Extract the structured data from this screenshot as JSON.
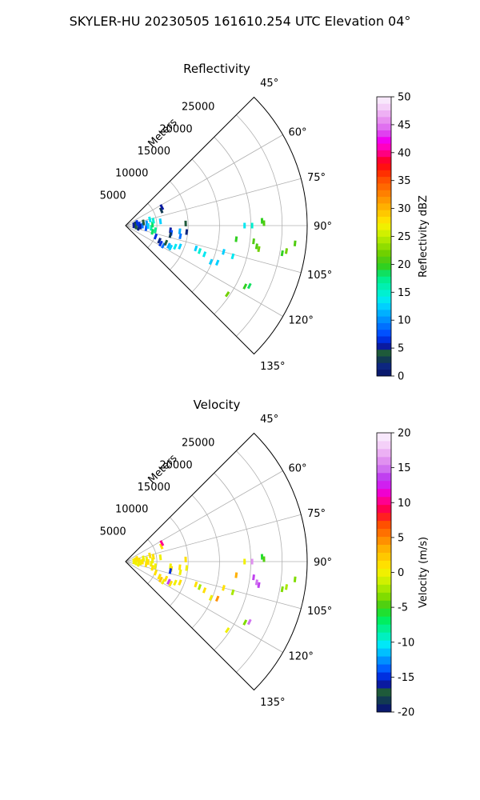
{
  "figure": {
    "suptitle": "SKYLER-HU  20230505  161610.254 UTC Elevation 04°"
  },
  "chart_data": [
    {
      "type": "scatter",
      "subtype": "polar-sector radar PPI",
      "title": "Reflectivity",
      "radial_label": "Meters",
      "theta_range_deg": [
        45,
        135
      ],
      "theta_ticks": [
        "45°",
        "60°",
        "75°",
        "90°",
        "105°",
        "120°",
        "135°"
      ],
      "r_max_m": 29000,
      "r_ticks": [
        "5000",
        "10000",
        "15000",
        "20000",
        "25000"
      ],
      "grid": true,
      "colorbar": {
        "label": "Reflectivity dBZ",
        "min": 0,
        "max": 50,
        "ticks": [
          "0",
          "5",
          "10",
          "15",
          "20",
          "25",
          "30",
          "35",
          "40",
          "45",
          "50"
        ],
        "levels": [
          "#0a1a6e",
          "#0d2680",
          "#123a52",
          "#1e5a3a",
          "#0a1aa0",
          "#0030e0",
          "#0050ff",
          "#0070ff",
          "#0090ff",
          "#00b0ff",
          "#00d0ff",
          "#00e8f0",
          "#00f0d0",
          "#00f0b0",
          "#00ee90",
          "#10e060",
          "#30d020",
          "#50cc10",
          "#70d000",
          "#90dd00",
          "#b0e800",
          "#d0f000",
          "#f0f000",
          "#ffe000",
          "#ffc800",
          "#ffb000",
          "#ff9800",
          "#ff8000",
          "#ff6800",
          "#ff5000",
          "#ff3000",
          "#ff1010",
          "#ff0030",
          "#ff0080",
          "#ff00c0",
          "#f000f0",
          "#e040f0",
          "#e070f0",
          "#e890f0",
          "#eeb0f4",
          "#f4d0f8",
          "#f8e8fc"
        ]
      },
      "points": [
        {
          "r": 1300,
          "theta": 88,
          "v": 5
        },
        {
          "r": 1600,
          "theta": 82,
          "v": 3
        },
        {
          "r": 1700,
          "theta": 95,
          "v": 4
        },
        {
          "r": 1900,
          "theta": 77,
          "v": 6
        },
        {
          "r": 2100,
          "theta": 100,
          "v": 2
        },
        {
          "r": 2200,
          "theta": 86,
          "v": 7
        },
        {
          "r": 2400,
          "theta": 93,
          "v": 5
        },
        {
          "r": 2700,
          "theta": 90,
          "v": 9
        },
        {
          "r": 2900,
          "theta": 80,
          "v": 4
        },
        {
          "r": 3300,
          "theta": 97,
          "v": 8
        },
        {
          "r": 3400,
          "theta": 84,
          "v": 10
        },
        {
          "r": 3600,
          "theta": 91,
          "v": 12
        },
        {
          "r": 4000,
          "theta": 76,
          "v": 14
        },
        {
          "r": 4100,
          "theta": 95,
          "v": 16
        },
        {
          "r": 4400,
          "theta": 103,
          "v": 18
        },
        {
          "r": 4800,
          "theta": 99,
          "v": 17
        },
        {
          "r": 5100,
          "theta": 110,
          "v": 7
        },
        {
          "r": 5600,
          "theta": 83,
          "v": 13
        },
        {
          "r": 4300,
          "theta": 88,
          "v": 19
        },
        {
          "r": 4500,
          "theta": 80,
          "v": 15
        },
        {
          "r": 6200,
          "theta": 67,
          "v": 3
        },
        {
          "r": 6500,
          "theta": 63,
          "v": 5
        },
        {
          "r": 5900,
          "theta": 114,
          "v": 2
        },
        {
          "r": 6300,
          "theta": 117,
          "v": 6
        },
        {
          "r": 6800,
          "theta": 118,
          "v": 9
        },
        {
          "r": 7000,
          "theta": 113,
          "v": 4
        },
        {
          "r": 7600,
          "theta": 115,
          "v": 11
        },
        {
          "r": 8000,
          "theta": 116,
          "v": 12
        },
        {
          "r": 8600,
          "theta": 113,
          "v": 14
        },
        {
          "r": 9300,
          "theta": 111,
          "v": 13
        },
        {
          "r": 7200,
          "theta": 96,
          "v": 5
        },
        {
          "r": 7400,
          "theta": 99,
          "v": 8
        },
        {
          "r": 7300,
          "theta": 102,
          "v": 3
        },
        {
          "r": 8700,
          "theta": 96,
          "v": 11
        },
        {
          "r": 8900,
          "theta": 101,
          "v": 9
        },
        {
          "r": 9600,
          "theta": 88,
          "v": 4
        },
        {
          "r": 9800,
          "theta": 96,
          "v": 2
        },
        {
          "r": 11800,
          "theta": 108,
          "v": 13
        },
        {
          "r": 12500,
          "theta": 109,
          "v": 15
        },
        {
          "r": 13400,
          "theta": 110,
          "v": 14
        },
        {
          "r": 14800,
          "theta": 113,
          "v": 13
        },
        {
          "r": 15800,
          "theta": 112,
          "v": 12
        },
        {
          "r": 16200,
          "theta": 105,
          "v": 13
        },
        {
          "r": 17800,
          "theta": 106,
          "v": 14
        },
        {
          "r": 21400,
          "theta": 117,
          "v": 20
        },
        {
          "r": 22000,
          "theta": 116,
          "v": 19
        },
        {
          "r": 19600,
          "theta": 124,
          "v": 22
        },
        {
          "r": 17800,
          "theta": 97,
          "v": 20
        },
        {
          "r": 20600,
          "theta": 97,
          "v": 21
        },
        {
          "r": 21200,
          "theta": 99,
          "v": 21
        },
        {
          "r": 21600,
          "theta": 100,
          "v": 22
        },
        {
          "r": 19000,
          "theta": 90,
          "v": 14
        },
        {
          "r": 20200,
          "theta": 90,
          "v": 15
        },
        {
          "r": 21800,
          "theta": 88,
          "v": 20
        },
        {
          "r": 22100,
          "theta": 89,
          "v": 21
        },
        {
          "r": 25400,
          "theta": 100,
          "v": 20
        },
        {
          "r": 26000,
          "theta": 99,
          "v": 22
        },
        {
          "r": 27200,
          "theta": 96,
          "v": 21
        }
      ]
    },
    {
      "type": "scatter",
      "subtype": "polar-sector radar PPI",
      "title": "Velocity",
      "radial_label": "Meters",
      "theta_range_deg": [
        45,
        135
      ],
      "theta_ticks": [
        "45°",
        "60°",
        "75°",
        "90°",
        "105°",
        "120°",
        "135°"
      ],
      "r_max_m": 29000,
      "r_ticks": [
        "5000",
        "10000",
        "15000",
        "20000",
        "25000"
      ],
      "grid": true,
      "colorbar": {
        "label": "Velocity (m/s)",
        "min": -20,
        "max": 20,
        "ticks": [
          "-20",
          "-15",
          "-10",
          "-5",
          "0",
          "5",
          "10",
          "15",
          "20"
        ],
        "levels": [
          "#0a1a6e",
          "#123a52",
          "#1e5a3a",
          "#0a1aa0",
          "#0030e0",
          "#0060ff",
          "#0090ff",
          "#00c0ff",
          "#00e8f8",
          "#00f0c0",
          "#00f090",
          "#00ee60",
          "#20e030",
          "#50d010",
          "#80dc00",
          "#a8e800",
          "#d0f000",
          "#f0f000",
          "#ffe000",
          "#ffc800",
          "#ffb000",
          "#ff9000",
          "#ff7000",
          "#ff5000",
          "#ff2020",
          "#ff0050",
          "#ff0090",
          "#f000d0",
          "#d020f0",
          "#c040f0",
          "#d070f0",
          "#e090f0",
          "#ecb0f4",
          "#f4d0f8",
          "#f8e8fc"
        ]
      },
      "points": [
        {
          "r": 1300,
          "theta": 88,
          "v": 0
        },
        {
          "r": 1600,
          "theta": 82,
          "v": 1
        },
        {
          "r": 1700,
          "theta": 95,
          "v": 0
        },
        {
          "r": 1900,
          "theta": 77,
          "v": 1
        },
        {
          "r": 2100,
          "theta": 100,
          "v": 0
        },
        {
          "r": 2200,
          "theta": 86,
          "v": 1
        },
        {
          "r": 2400,
          "theta": 93,
          "v": 0
        },
        {
          "r": 2700,
          "theta": 90,
          "v": 1
        },
        {
          "r": 2900,
          "theta": 80,
          "v": 0
        },
        {
          "r": 3300,
          "theta": 97,
          "v": 1
        },
        {
          "r": 3400,
          "theta": 84,
          "v": 0
        },
        {
          "r": 3600,
          "theta": 91,
          "v": 1
        },
        {
          "r": 4000,
          "theta": 76,
          "v": 1
        },
        {
          "r": 4100,
          "theta": 95,
          "v": 0
        },
        {
          "r": 4400,
          "theta": 103,
          "v": 1
        },
        {
          "r": 4800,
          "theta": 99,
          "v": 0
        },
        {
          "r": 5100,
          "theta": 110,
          "v": 1
        },
        {
          "r": 5600,
          "theta": 83,
          "v": 0
        },
        {
          "r": 4300,
          "theta": 88,
          "v": 0
        },
        {
          "r": 4500,
          "theta": 80,
          "v": 1
        },
        {
          "r": 6200,
          "theta": 67,
          "v": 1
        },
        {
          "r": 6500,
          "theta": 63,
          "v": 10
        },
        {
          "r": 5900,
          "theta": 114,
          "v": 1
        },
        {
          "r": 6300,
          "theta": 117,
          "v": 2
        },
        {
          "r": 6800,
          "theta": 118,
          "v": 0
        },
        {
          "r": 7000,
          "theta": 113,
          "v": 1
        },
        {
          "r": 7600,
          "theta": 115,
          "v": 14
        },
        {
          "r": 8000,
          "theta": 116,
          "v": 1
        },
        {
          "r": 8600,
          "theta": 113,
          "v": 0
        },
        {
          "r": 9300,
          "theta": 111,
          "v": 1
        },
        {
          "r": 7200,
          "theta": 96,
          "v": 0
        },
        {
          "r": 7400,
          "theta": 99,
          "v": 1
        },
        {
          "r": 7300,
          "theta": 102,
          "v": -15
        },
        {
          "r": 8700,
          "theta": 96,
          "v": 1
        },
        {
          "r": 8900,
          "theta": 101,
          "v": 0
        },
        {
          "r": 9600,
          "theta": 88,
          "v": 1
        },
        {
          "r": 9800,
          "theta": 96,
          "v": 0
        },
        {
          "r": 11800,
          "theta": 108,
          "v": 1
        },
        {
          "r": 12500,
          "theta": 109,
          "v": -2
        },
        {
          "r": 13400,
          "theta": 110,
          "v": 1
        },
        {
          "r": 14800,
          "theta": 113,
          "v": 0
        },
        {
          "r": 15800,
          "theta": 112,
          "v": 4
        },
        {
          "r": 16200,
          "theta": 105,
          "v": 1
        },
        {
          "r": 17800,
          "theta": 106,
          "v": -2
        },
        {
          "r": 21400,
          "theta": 117,
          "v": -3
        },
        {
          "r": 22000,
          "theta": 116,
          "v": 15
        },
        {
          "r": 19600,
          "theta": 124,
          "v": 0
        },
        {
          "r": 17800,
          "theta": 97,
          "v": 3
        },
        {
          "r": 20600,
          "theta": 97,
          "v": 14
        },
        {
          "r": 21200,
          "theta": 99,
          "v": 15
        },
        {
          "r": 21600,
          "theta": 100,
          "v": 14
        },
        {
          "r": 19000,
          "theta": 90,
          "v": 0
        },
        {
          "r": 20200,
          "theta": 90,
          "v": 16
        },
        {
          "r": 21800,
          "theta": 88,
          "v": -6
        },
        {
          "r": 22100,
          "theta": 89,
          "v": -5
        },
        {
          "r": 25400,
          "theta": 100,
          "v": -3
        },
        {
          "r": 26000,
          "theta": 99,
          "v": -2
        },
        {
          "r": 27200,
          "theta": 96,
          "v": -4
        }
      ]
    }
  ]
}
